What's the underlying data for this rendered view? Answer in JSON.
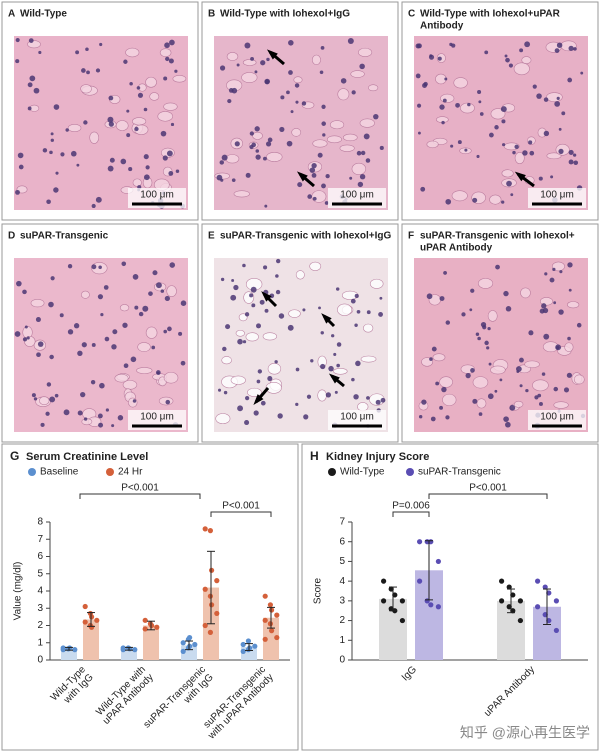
{
  "panels": [
    {
      "letter": "A",
      "title": [
        "Wild-Type"
      ],
      "scale_bar": "100 μm"
    },
    {
      "letter": "B",
      "title": [
        "Wild-Type with Iohexol+IgG"
      ],
      "scale_bar": "100 μm"
    },
    {
      "letter": "C",
      "title": [
        "Wild-Type with Iohexol+uPAR",
        "Antibody"
      ],
      "scale_bar": "100 μm"
    },
    {
      "letter": "D",
      "title": [
        "suPAR-Transgenic"
      ],
      "scale_bar": "100 μm"
    },
    {
      "letter": "E",
      "title": [
        "suPAR-Transgenic with Iohexol+IgG"
      ],
      "scale_bar": "100 μm"
    },
    {
      "letter": "F",
      "title": [
        "suPAR-Transgenic with Iohexol+",
        "uPAR Antibody"
      ],
      "scale_bar": "100 μm"
    }
  ],
  "chart_data": [
    {
      "type": "bar",
      "panel_label": "G",
      "title": "Serum Creatinine Level",
      "y_label": "Value (mg/dl)",
      "categories": [
        [
          "Wild-Type",
          "with IgG"
        ],
        [
          "Wild-Type with",
          "uPAR Antibody"
        ],
        [
          "suPAR-Transgenic",
          "with IgG"
        ],
        [
          "suPAR-Transgenic",
          "with uPAR Antibody"
        ]
      ],
      "series": [
        {
          "name": "Baseline",
          "color": "#5b8fcf",
          "bar_color": "#c9dbef",
          "values": [
            0.65,
            0.65,
            0.85,
            0.75
          ],
          "errors": [
            0.08,
            0.08,
            0.25,
            0.2
          ],
          "points": [
            [
              0.6,
              0.65,
              0.7,
              0.6,
              0.7,
              0.65
            ],
            [
              0.6,
              0.7,
              0.65,
              0.6,
              0.7
            ],
            [
              0.5,
              0.7,
              0.8,
              0.9,
              1.0,
              1.2,
              1.3
            ],
            [
              0.5,
              0.6,
              0.7,
              0.8,
              0.9,
              1.1
            ]
          ]
        },
        {
          "name": "24 Hr",
          "color": "#d4603a",
          "bar_color": "#efc2ad",
          "values": [
            2.35,
            2.0,
            4.2,
            2.45
          ],
          "errors": [
            0.4,
            0.25,
            2.1,
            0.6
          ],
          "points": [
            [
              3.1,
              2.7,
              2.5,
              2.3,
              2.2,
              2.0,
              1.9
            ],
            [
              2.3,
              2.1,
              2.0,
              1.9,
              1.8
            ],
            [
              7.6,
              7.5,
              5.2,
              4.6,
              4.1,
              3.7,
              3.2,
              2.7,
              2.0,
              1.6
            ],
            [
              3.7,
              3.2,
              2.9,
              2.6,
              2.3,
              2.1,
              1.7,
              1.3,
              1.2
            ]
          ]
        }
      ],
      "annotations": [
        "P<0.001",
        "P<0.001"
      ],
      "ylim": [
        0,
        8
      ],
      "yticks": [
        0,
        1,
        2,
        3,
        4,
        5,
        6,
        7,
        8
      ]
    },
    {
      "type": "bar",
      "panel_label": "H",
      "title": "Kidney Injury Score",
      "y_label": "Score",
      "categories": [
        [
          "IgG"
        ],
        [
          "uPAR Antibody"
        ]
      ],
      "series": [
        {
          "name": "Wild-Type",
          "color": "#1a1a1a",
          "bar_color": "#dcdcdc",
          "values": [
            3.1,
            3.0
          ],
          "errors": [
            0.6,
            0.6
          ],
          "points": [
            [
              4,
              3.6,
              3.3,
              3,
              3,
              2.6,
              2.5,
              2
            ],
            [
              4,
              3.7,
              3.3,
              3,
              3,
              2.7,
              2.5,
              2
            ]
          ]
        },
        {
          "name": "suPAR-Transgenic",
          "color": "#5a4db3",
          "bar_color": "#bdb7e3",
          "values": [
            4.55,
            2.7
          ],
          "errors": [
            1.5,
            0.9
          ],
          "points": [
            [
              6,
              6,
              6,
              5,
              4,
              3,
              2.8,
              2.7
            ],
            [
              4,
              3.7,
              3.4,
              3,
              2.7,
              2.3,
              2,
              1.5
            ]
          ]
        }
      ],
      "annotations": [
        "P=0.006",
        "P<0.001"
      ],
      "ylim": [
        0,
        7
      ],
      "yticks": [
        0,
        1,
        2,
        3,
        4,
        5,
        6,
        7
      ]
    }
  ],
  "watermark": "知乎 @源心再生医学"
}
